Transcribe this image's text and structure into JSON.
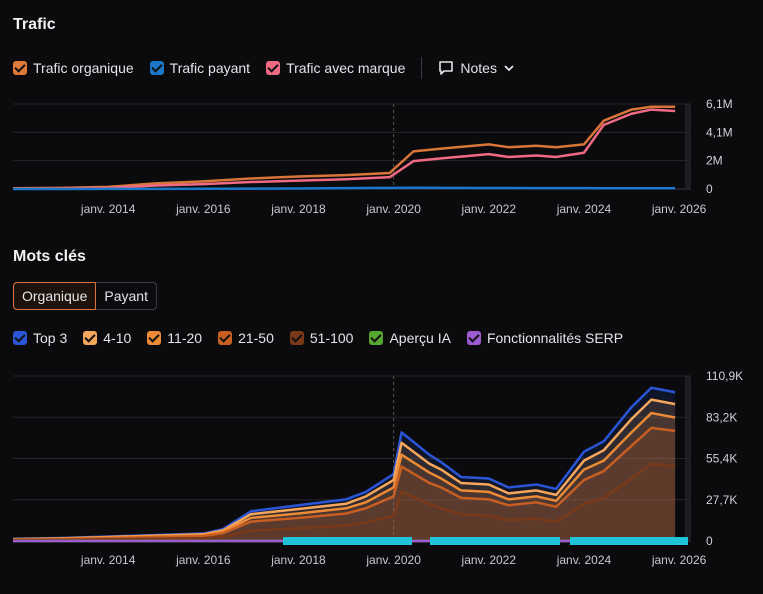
{
  "traffic": {
    "title": "Trafic",
    "legend": [
      {
        "label": "Trafic organique",
        "color": "#e07a3c"
      },
      {
        "label": "Trafic payant",
        "color": "#1d77c9"
      },
      {
        "label": "Trafic avec marque",
        "color": "#f06a83"
      }
    ],
    "notes_label": "Notes"
  },
  "keywords": {
    "title": "Mots clés",
    "tabs": [
      "Organique",
      "Payant"
    ],
    "active_tab": "Organique",
    "legend": [
      {
        "label": "Top 3",
        "color": "#2a55d6"
      },
      {
        "label": "4-10",
        "color": "#f5a65b"
      },
      {
        "label": "11-20",
        "color": "#ec8a35"
      },
      {
        "label": "21-50",
        "color": "#c85f22"
      },
      {
        "label": "51-100",
        "color": "#7a3a1a"
      },
      {
        "label": "Aperçu IA",
        "color": "#56a832"
      },
      {
        "label": "Fonctionnalités SERP",
        "color": "#9b5cd1"
      }
    ]
  },
  "chart_data": [
    {
      "type": "line",
      "title": "Trafic",
      "x_tick_labels": [
        "janv. 2014",
        "janv. 2016",
        "janv. 2018",
        "janv. 2020",
        "janv. 2022",
        "janv. 2024",
        "janv. 2026"
      ],
      "y_tick_labels": [
        "6,1M",
        "4,1M",
        "2M",
        "0"
      ],
      "ylim": [
        0,
        6100000
      ],
      "x": [
        "2012-01",
        "2013-01",
        "2014-01",
        "2015-01",
        "2016-01",
        "2017-01",
        "2018-01",
        "2019-01",
        "2019-12",
        "2020-06",
        "2021-01",
        "2022-01",
        "2022-06",
        "2023-01",
        "2023-06",
        "2024-01",
        "2024-06",
        "2025-01",
        "2025-06",
        "2025-12"
      ],
      "series": [
        {
          "name": "Trafic organique",
          "color": "#d8763a",
          "values": [
            50000,
            80000,
            150000,
            400000,
            550000,
            750000,
            900000,
            1000000,
            1150000,
            2700000,
            2900000,
            3200000,
            3000000,
            3100000,
            3000000,
            3200000,
            4900000,
            5700000,
            5900000,
            5900000
          ]
        },
        {
          "name": "Trafic avec marque",
          "color": "#f06a83",
          "values": [
            20000,
            40000,
            80000,
            250000,
            350000,
            500000,
            600000,
            700000,
            850000,
            2000000,
            2200000,
            2500000,
            2300000,
            2400000,
            2300000,
            2600000,
            4600000,
            5400000,
            5700000,
            5600000
          ]
        },
        {
          "name": "Trafic payant",
          "color": "#1d77c9",
          "values": [
            0,
            0,
            5000,
            10000,
            20000,
            30000,
            40000,
            60000,
            80000,
            90000,
            80000,
            70000,
            70000,
            60000,
            60000,
            60000,
            50000,
            50000,
            50000,
            50000
          ]
        }
      ],
      "grid": true
    },
    {
      "type": "area",
      "title": "Mots clés",
      "x_tick_labels": [
        "janv. 2014",
        "janv. 2016",
        "janv. 2018",
        "janv. 2020",
        "janv. 2022",
        "janv. 2024",
        "janv. 2026"
      ],
      "y_tick_labels": [
        "110,9K",
        "83,2K",
        "55,4K",
        "27,7K",
        "0"
      ],
      "ylim": [
        0,
        110900
      ],
      "x": [
        "2012-01",
        "2013-01",
        "2014-01",
        "2015-01",
        "2016-01",
        "2016-06",
        "2017-01",
        "2018-01",
        "2019-01",
        "2019-06",
        "2020-01",
        "2020-03",
        "2020-10",
        "2021-01",
        "2021-06",
        "2022-01",
        "2022-06",
        "2023-01",
        "2023-06",
        "2024-01",
        "2024-06",
        "2025-01",
        "2025-06",
        "2025-12"
      ],
      "series": [
        {
          "name": "Top 3",
          "color": "#2a55d6",
          "values": [
            1500,
            2000,
            3000,
            4000,
            5000,
            8000,
            20000,
            24000,
            28000,
            33000,
            45000,
            73000,
            58000,
            53000,
            43000,
            42000,
            36000,
            38000,
            35000,
            60000,
            67000,
            90000,
            103000,
            100000
          ]
        },
        {
          "name": "4-10",
          "color": "#f5a65b",
          "values": [
            1300,
            1800,
            2700,
            3600,
            4500,
            7200,
            18000,
            21500,
            25000,
            30000,
            41000,
            66000,
            52000,
            48000,
            39000,
            38000,
            32000,
            34000,
            31000,
            54000,
            61000,
            82000,
            95000,
            92000
          ]
        },
        {
          "name": "11-20",
          "color": "#ec8a35",
          "values": [
            1100,
            1500,
            2300,
            3100,
            3900,
            6300,
            15500,
            18500,
            22000,
            26000,
            36000,
            58000,
            46000,
            42000,
            34000,
            33000,
            28000,
            30000,
            27000,
            48000,
            54000,
            73000,
            86000,
            83000
          ]
        },
        {
          "name": "21-50",
          "color": "#c85f22",
          "values": [
            900,
            1200,
            1900,
            2600,
            3300,
            5300,
            13000,
            15500,
            18500,
            22000,
            30000,
            50000,
            39000,
            36000,
            29000,
            28000,
            24000,
            26000,
            23000,
            41000,
            47000,
            64000,
            76000,
            74000
          ]
        },
        {
          "name": "51-100",
          "color": "#7a3a1a",
          "values": [
            500,
            700,
            1100,
            1500,
            1900,
            3000,
            7000,
            8500,
            10500,
            12500,
            17000,
            33000,
            25000,
            22000,
            18000,
            17000,
            14000,
            15000,
            13000,
            25000,
            29000,
            42000,
            52000,
            50000
          ]
        },
        {
          "name": "Aperçu IA",
          "color": "#56a832",
          "values": [
            0,
            0,
            0,
            0,
            0,
            0,
            0,
            0,
            0,
            0,
            0,
            0,
            0,
            0,
            0,
            0,
            0,
            0,
            0,
            0,
            0,
            0,
            0,
            0
          ]
        },
        {
          "name": "Fonctionnalités SERP",
          "color": "#9b5cd1",
          "values": [
            0,
            0,
            0,
            0,
            0,
            0,
            0,
            0,
            0,
            0,
            0,
            0,
            0,
            0,
            0,
            0,
            0,
            0,
            0,
            0,
            0,
            0,
            0,
            0
          ]
        }
      ],
      "grid": true
    }
  ]
}
